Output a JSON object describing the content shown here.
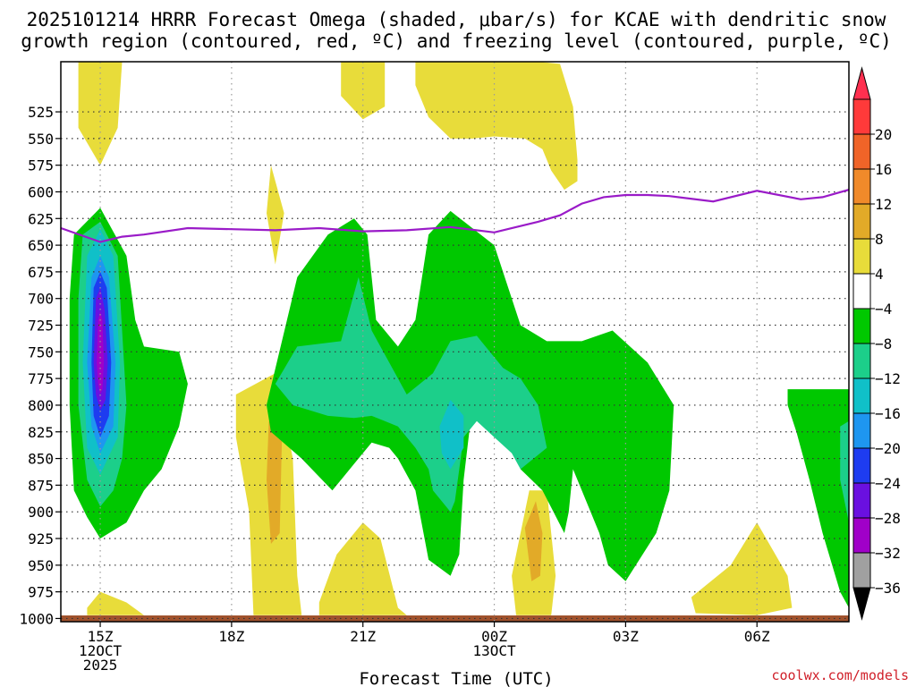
{
  "colors": {
    "purple_level": "#9a1bc8",
    "ground": "#a0522d",
    "grid": "#9a9a9a"
  },
  "chart_data": {
    "type": "heatmap",
    "title_line1": "2025101214 HRRR Forecast Omega (shaded, μbar/s) for KCAE with dendritic snow",
    "title_line2": "growth region (contoured, red, ºC) and freezing level (contoured, purple, ºC)",
    "xlabel": "Forecast Time (UTC)",
    "credit": "coolwx.com/models",
    "x_range_hours": [
      -0.9,
      17.1
    ],
    "y_range_hPa": [
      1003,
      478
    ],
    "y_ticks": [
      525,
      550,
      575,
      600,
      625,
      650,
      675,
      700,
      725,
      750,
      775,
      800,
      825,
      850,
      875,
      900,
      925,
      950,
      975,
      1000
    ],
    "x_ticks": [
      {
        "hour": 0,
        "lines": [
          "15Z",
          "12OCT",
          "2025"
        ]
      },
      {
        "hour": 3,
        "lines": [
          "18Z"
        ]
      },
      {
        "hour": 6,
        "lines": [
          "21Z"
        ]
      },
      {
        "hour": 9,
        "lines": [
          "00Z",
          "13OCT"
        ]
      },
      {
        "hour": 12,
        "lines": [
          "03Z"
        ]
      },
      {
        "hour": 15,
        "lines": [
          "06Z"
        ]
      }
    ],
    "colorbar": {
      "labels": [
        "20",
        "16",
        "12",
        "8",
        "4",
        "−4",
        "−8",
        "−12",
        "−16",
        "−20",
        "−24",
        "−28",
        "−32",
        "−36"
      ],
      "segments": [
        {
          "color": "#ff2f4f",
          "kind": "top-tri"
        },
        {
          "color": "#ff3a3a"
        },
        {
          "color": "#f06428"
        },
        {
          "color": "#f08a2a"
        },
        {
          "color": "#e2aa28"
        },
        {
          "color": "#e8dc3a"
        },
        {
          "color": "#ffffff"
        },
        {
          "color": "#00c800"
        },
        {
          "color": "#1ccf8a"
        },
        {
          "color": "#10c0c8"
        },
        {
          "color": "#1e96f0"
        },
        {
          "color": "#1e3cf0"
        },
        {
          "color": "#6a10e0"
        },
        {
          "color": "#a000c8"
        },
        {
          "color": "#a0a0a0"
        },
        {
          "color": "#000000",
          "kind": "bottom-tri"
        }
      ]
    },
    "freezing_level_hPa": {
      "hours": [
        -0.9,
        0,
        0.5,
        1,
        2,
        3,
        4,
        5,
        6,
        7,
        8,
        9,
        10,
        10.5,
        11,
        11.5,
        12,
        12.5,
        13,
        14,
        15,
        16,
        16.5,
        17.1
      ],
      "pressure": [
        634,
        647,
        642,
        640,
        634,
        635,
        636,
        634,
        637,
        636,
        633,
        638,
        628,
        622,
        611,
        605,
        603,
        603,
        604,
        609,
        599,
        607,
        605,
        598
      ]
    },
    "omega_regions": [
      {
        "level": 4,
        "color": "#e8dc3a",
        "points": [
          [
            -0.5,
            478
          ],
          [
            0.5,
            478
          ],
          [
            0.4,
            540
          ],
          [
            0,
            575
          ],
          [
            -0.5,
            540
          ]
        ]
      },
      {
        "level": 4,
        "color": "#e8dc3a",
        "points": [
          [
            6.5,
            478
          ],
          [
            6.5,
            520
          ],
          [
            6.0,
            532
          ],
          [
            5.5,
            510
          ],
          [
            5.5,
            478
          ]
        ]
      },
      {
        "level": 4,
        "color": "#e8dc3a",
        "points": [
          [
            7.2,
            478
          ],
          [
            8.9,
            478
          ],
          [
            8.9,
            472
          ],
          [
            9.9,
            472
          ],
          [
            10.0,
            478
          ],
          [
            10.5,
            480
          ],
          [
            10.8,
            520
          ],
          [
            10.9,
            570
          ],
          [
            10.9,
            590
          ],
          [
            10.6,
            598
          ],
          [
            10.3,
            580
          ],
          [
            10.1,
            560
          ],
          [
            9.7,
            550
          ],
          [
            9.0,
            548
          ],
          [
            8.5,
            550
          ],
          [
            8.0,
            550
          ],
          [
            7.5,
            530
          ],
          [
            7.2,
            500
          ]
        ]
      },
      {
        "level": 4,
        "color": "#e8dc3a",
        "points": [
          [
            3.9,
            575
          ],
          [
            4.2,
            620
          ],
          [
            4.0,
            668
          ],
          [
            3.8,
            620
          ]
        ]
      },
      {
        "level": 4,
        "color": "#e8dc3a",
        "points": [
          [
            3.1,
            790
          ],
          [
            4.0,
            770
          ],
          [
            4.4,
            850
          ],
          [
            4.5,
            960
          ],
          [
            4.6,
            997
          ],
          [
            3.5,
            997
          ],
          [
            3.4,
            900
          ],
          [
            3.1,
            830
          ]
        ]
      },
      {
        "level": 4,
        "color": "#e8dc3a",
        "points": [
          [
            5.0,
            985
          ],
          [
            5.4,
            940
          ],
          [
            6.0,
            910
          ],
          [
            6.4,
            925
          ],
          [
            6.8,
            990
          ],
          [
            7.0,
            997
          ],
          [
            5.0,
            997
          ]
        ]
      },
      {
        "level": 4,
        "color": "#e8dc3a",
        "points": [
          [
            9.4,
            960
          ],
          [
            9.8,
            880
          ],
          [
            10.2,
            880
          ],
          [
            10.4,
            960
          ],
          [
            10.3,
            997
          ],
          [
            9.5,
            997
          ]
        ]
      },
      {
        "level": 4,
        "color": "#e8dc3a",
        "points": [
          [
            13.5,
            980
          ],
          [
            14.4,
            950
          ],
          [
            15.0,
            910
          ],
          [
            15.7,
            960
          ],
          [
            15.8,
            990
          ],
          [
            15.0,
            997
          ],
          [
            13.6,
            995
          ]
        ]
      },
      {
        "level": 4,
        "color": "#e8dc3a",
        "points": [
          [
            -0.3,
            990
          ],
          [
            0,
            975
          ],
          [
            0.6,
            985
          ],
          [
            1.0,
            997
          ],
          [
            -0.3,
            997
          ]
        ]
      },
      {
        "level": 8,
        "color": "#e2aa28",
        "points": [
          [
            3.85,
            815
          ],
          [
            4.15,
            830
          ],
          [
            4.1,
            920
          ],
          [
            3.9,
            930
          ],
          [
            3.8,
            870
          ]
        ]
      },
      {
        "level": 8,
        "color": "#e2aa28",
        "points": [
          [
            9.7,
            915
          ],
          [
            9.95,
            890
          ],
          [
            10.1,
            920
          ],
          [
            10.05,
            960
          ],
          [
            9.85,
            965
          ]
        ]
      },
      {
        "level": -4,
        "color": "#00c800",
        "points": [
          [
            -0.6,
            640
          ],
          [
            0,
            615
          ],
          [
            0.6,
            660
          ],
          [
            0.8,
            720
          ],
          [
            1.0,
            745
          ],
          [
            1.8,
            750
          ],
          [
            2.0,
            780
          ],
          [
            1.8,
            820
          ],
          [
            1.4,
            860
          ],
          [
            1.0,
            880
          ],
          [
            0.6,
            910
          ],
          [
            0,
            925
          ],
          [
            -0.3,
            905
          ],
          [
            -0.6,
            880
          ],
          [
            -0.7,
            800
          ],
          [
            -0.7,
            700
          ]
        ]
      },
      {
        "level": -4,
        "color": "#00c800",
        "points": [
          [
            3.8,
            800
          ],
          [
            4.5,
            680
          ],
          [
            5.2,
            640
          ],
          [
            5.8,
            625
          ],
          [
            6.1,
            640
          ],
          [
            6.3,
            720
          ],
          [
            6.8,
            745
          ],
          [
            7.2,
            720
          ],
          [
            7.5,
            640
          ],
          [
            8.0,
            618
          ],
          [
            9.0,
            650
          ],
          [
            9.6,
            725
          ],
          [
            10.2,
            740
          ],
          [
            11.0,
            740
          ],
          [
            11.7,
            730
          ],
          [
            12.5,
            760
          ],
          [
            13.1,
            800
          ],
          [
            13.0,
            880
          ],
          [
            12.7,
            920
          ],
          [
            12.0,
            965
          ],
          [
            11.6,
            950
          ],
          [
            11.4,
            920
          ],
          [
            11.0,
            880
          ],
          [
            10.8,
            860
          ],
          [
            10.7,
            900
          ],
          [
            10.6,
            920
          ],
          [
            10.1,
            880
          ],
          [
            9.6,
            860
          ],
          [
            9.2,
            780
          ],
          [
            8.8,
            790
          ],
          [
            8.5,
            800
          ],
          [
            8.3,
            870
          ],
          [
            8.2,
            940
          ],
          [
            8.0,
            960
          ],
          [
            7.5,
            945
          ],
          [
            7.2,
            880
          ],
          [
            6.8,
            850
          ],
          [
            6.6,
            840
          ],
          [
            6.2,
            835
          ],
          [
            5.8,
            855
          ],
          [
            5.3,
            880
          ],
          [
            4.6,
            850
          ],
          [
            3.9,
            825
          ]
        ]
      },
      {
        "level": -4,
        "color": "#00c800",
        "points": [
          [
            15.7,
            785
          ],
          [
            17.1,
            785
          ],
          [
            17.1,
            990
          ],
          [
            16.9,
            975
          ],
          [
            16.5,
            920
          ],
          [
            16.2,
            870
          ],
          [
            15.9,
            825
          ],
          [
            15.7,
            800
          ]
        ]
      },
      {
        "level": -8,
        "color": "#1ccf8a",
        "points": [
          [
            -0.4,
            640
          ],
          [
            0,
            628
          ],
          [
            0.4,
            660
          ],
          [
            0.5,
            730
          ],
          [
            0.6,
            800
          ],
          [
            0.5,
            850
          ],
          [
            0.3,
            880
          ],
          [
            0,
            895
          ],
          [
            -0.3,
            870
          ],
          [
            -0.5,
            800
          ],
          [
            -0.5,
            700
          ]
        ]
      },
      {
        "level": -8,
        "color": "#1ccf8a",
        "points": [
          [
            4.0,
            780
          ],
          [
            4.5,
            745
          ],
          [
            5.5,
            740
          ],
          [
            5.9,
            680
          ],
          [
            6.2,
            730
          ],
          [
            6.6,
            760
          ],
          [
            7.0,
            790
          ],
          [
            7.6,
            770
          ],
          [
            8.0,
            740
          ],
          [
            8.6,
            735
          ],
          [
            9.2,
            765
          ],
          [
            9.6,
            775
          ],
          [
            10.0,
            800
          ],
          [
            10.2,
            840
          ],
          [
            9.6,
            860
          ],
          [
            9.4,
            845
          ],
          [
            9.0,
            830
          ],
          [
            8.6,
            815
          ],
          [
            8.3,
            830
          ],
          [
            8.1,
            890
          ],
          [
            8.0,
            900
          ],
          [
            7.6,
            880
          ],
          [
            7.5,
            860
          ],
          [
            7.2,
            840
          ],
          [
            6.8,
            820
          ],
          [
            6.5,
            815
          ],
          [
            6.2,
            810
          ],
          [
            5.8,
            812
          ],
          [
            5.2,
            810
          ],
          [
            4.4,
            800
          ]
        ]
      },
      {
        "level": -8,
        "color": "#1ccf8a",
        "points": [
          [
            16.9,
            820
          ],
          [
            17.1,
            815
          ],
          [
            17.1,
            910
          ],
          [
            16.9,
            870
          ]
        ]
      },
      {
        "level": -12,
        "color": "#10c0c8",
        "points": [
          [
            -0.3,
            660
          ],
          [
            0,
            635
          ],
          [
            0.3,
            660
          ],
          [
            0.45,
            760
          ],
          [
            0.4,
            830
          ],
          [
            0,
            865
          ],
          [
            -0.3,
            840
          ],
          [
            -0.4,
            760
          ]
        ]
      },
      {
        "level": -12,
        "color": "#10c0c8",
        "points": [
          [
            7.75,
            820
          ],
          [
            8.0,
            795
          ],
          [
            8.3,
            810
          ],
          [
            8.3,
            840
          ],
          [
            8.0,
            860
          ],
          [
            7.8,
            845
          ]
        ]
      },
      {
        "level": -16,
        "color": "#1e96f0",
        "points": [
          [
            -0.2,
            680
          ],
          [
            0,
            660
          ],
          [
            0.2,
            680
          ],
          [
            0.35,
            760
          ],
          [
            0.3,
            820
          ],
          [
            0,
            845
          ],
          [
            -0.2,
            820
          ],
          [
            -0.3,
            760
          ]
        ]
      },
      {
        "level": -20,
        "color": "#1e3cf0",
        "points": [
          [
            -0.15,
            690
          ],
          [
            0,
            675
          ],
          [
            0.15,
            690
          ],
          [
            0.25,
            760
          ],
          [
            0.2,
            810
          ],
          [
            0,
            830
          ],
          [
            -0.15,
            810
          ],
          [
            -0.2,
            760
          ]
        ]
      },
      {
        "level": -24,
        "color": "#6a10e0",
        "points": [
          [
            -0.1,
            700
          ],
          [
            0,
            690
          ],
          [
            0.1,
            710
          ],
          [
            0.17,
            760
          ],
          [
            0.12,
            795
          ],
          [
            0,
            805
          ],
          [
            -0.1,
            790
          ],
          [
            -0.15,
            760
          ]
        ]
      },
      {
        "level": -28,
        "color": "#a000c8",
        "points": [
          [
            -0.05,
            720
          ],
          [
            0,
            712
          ],
          [
            0.05,
            720
          ],
          [
            0.08,
            760
          ],
          [
            0.05,
            785
          ],
          [
            0,
            790
          ],
          [
            -0.05,
            780
          ],
          [
            -0.08,
            760
          ]
        ]
      }
    ]
  }
}
